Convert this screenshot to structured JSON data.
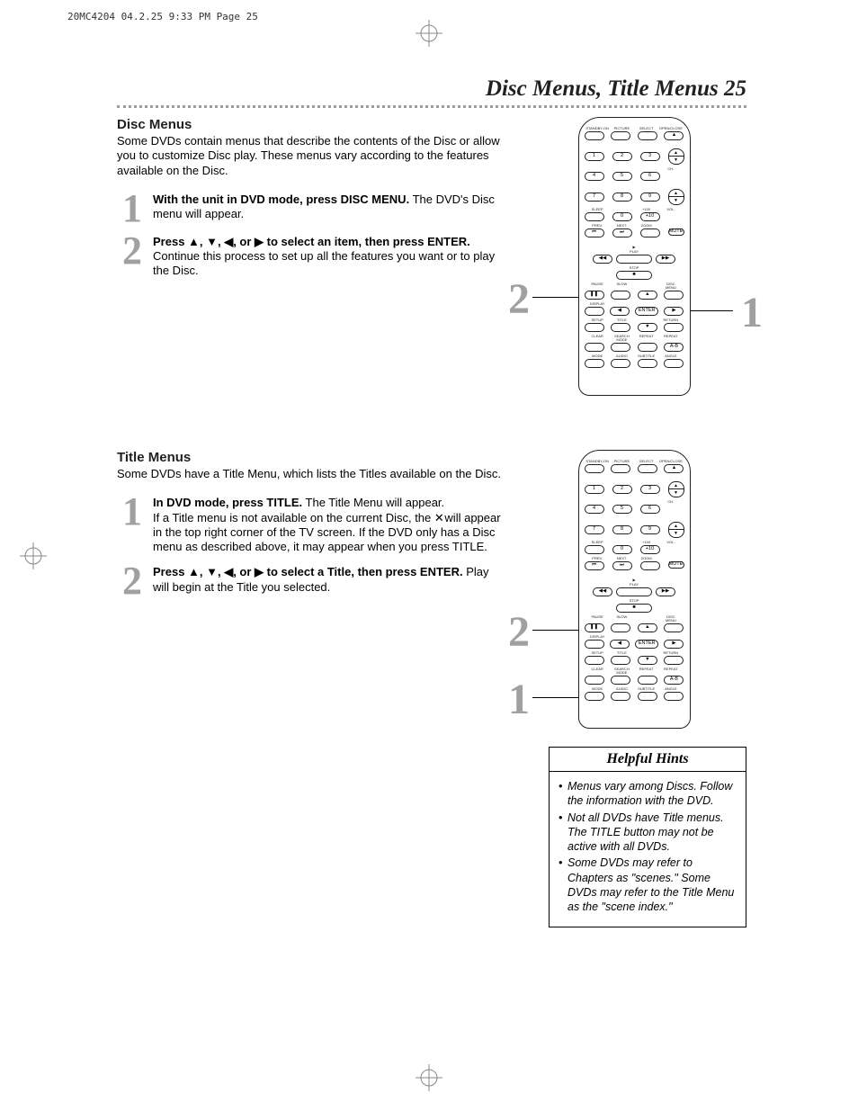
{
  "printHeader": "20MC4204  04.2.25  9:33 PM  Page 25",
  "pageTitle": "Disc Menus, Title Menus  25",
  "discMenus": {
    "heading": "Disc Menus",
    "intro": "Some DVDs contain menus that describe the contents of the Disc or allow you to customize Disc play. These menus vary according to the features available on the Disc.",
    "step1": {
      "num": "1",
      "bold": "With the unit in DVD mode, press DISC MENU.",
      "rest": " The DVD's Disc menu will appear."
    },
    "step2": {
      "num": "2",
      "bold": "Press ▲, ▼, ◀, or ▶ to select an item, then press ENTER.",
      "rest": " Continue this process to set up all the features you want or to play the Disc."
    },
    "callout1": "1",
    "callout2": "2"
  },
  "titleMenus": {
    "heading": "Title Menus",
    "intro": "Some DVDs have a Title Menu, which lists the Titles available on the Disc.",
    "step1": {
      "num": "1",
      "bold": "In DVD mode, press TITLE.",
      "rest": " The Title Menu will appear.",
      "extraPrefix": "If a Title menu is not available on the current Disc, the ",
      "extraSuffix": " will appear in the top right corner of the TV screen. If the DVD only has a Disc menu as described above, it may appear when you press TITLE."
    },
    "step2": {
      "num": "2",
      "bold": "Press ▲, ▼, ◀, or ▶ to select a Title, then press ENTER.",
      "rest": " Play will begin at the Title you selected."
    },
    "callout1": "1",
    "callout2": "2"
  },
  "hints": {
    "heading": "Helpful Hints",
    "items": [
      "Menus vary among Discs. Follow the information with the DVD.",
      "Not all DVDs have Title menus. The TITLE button may not be active with all DVDs.",
      "Some DVDs may refer to Chapters as \"scenes.\" Some DVDs may refer to the Title Menu as the \"scene index.\""
    ]
  },
  "remote": {
    "topRow": [
      "STANDBY-ON",
      "PICTURE",
      "SELECT",
      "OPEN/CLOSE"
    ],
    "numbers": [
      "1",
      "2",
      "3",
      "4",
      "5",
      "6",
      "7",
      "8",
      "9",
      "0"
    ],
    "plus100": "+100",
    "plus10": "+10",
    "sleep": "SLEEP",
    "ch": "CH.",
    "vol": "VOL.",
    "prev": "PREV.",
    "next": "NEXT.",
    "zoom": "ZOOM",
    "mute": "MUTE",
    "play": "PLAY",
    "stop": "STOP",
    "pause": "PAUSE",
    "slow": "SLOW",
    "discMenu": "DISC\nMENU",
    "display": "DISPLAY",
    "enter": "ENTER",
    "setup": "SETUP",
    "title": "TITLE",
    "return": "RETURN",
    "clear": "CLEAR",
    "searchMode": "SEARCH MODE",
    "repeat": "REPEAT",
    "repeatAB": "REPEAT",
    "ab": "A-B",
    "mode": "MODE",
    "audio": "AUDIO",
    "subtitle": "SUBTITLE",
    "angle": "ANGLE"
  },
  "colors": {
    "text": "#231f20",
    "stepNum": "#a0a0a0",
    "dots": "#9a9a9a",
    "bg": "#ffffff"
  }
}
